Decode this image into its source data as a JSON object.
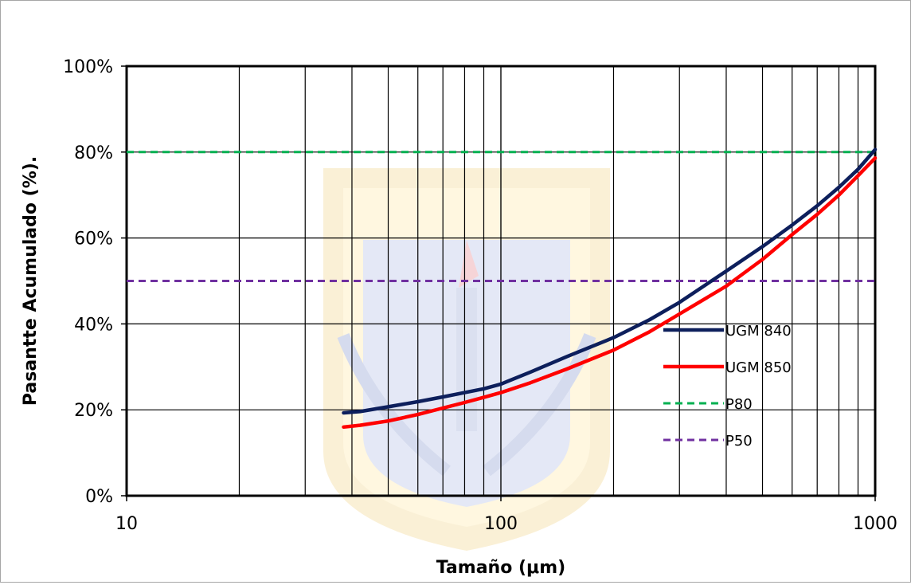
{
  "chart_data": {
    "type": "line",
    "xlabel": "Tamaño (μm)",
    "ylabel": "Pasantte Acumulado (%).",
    "x_scale": "log",
    "xlim": [
      10,
      1000
    ],
    "ylim": [
      0,
      100
    ],
    "x_ticks": [
      "10",
      "100",
      "1000"
    ],
    "y_ticks": [
      "0%",
      "20%",
      "40%",
      "60%",
      "80%",
      "100%"
    ],
    "grid": true,
    "legend_position": "right",
    "series": [
      {
        "name": "UGM 840",
        "color": "#0d1f5c",
        "style": "solid",
        "x": [
          38,
          42,
          50,
          60,
          70,
          80,
          90,
          100,
          120,
          150,
          200,
          250,
          300,
          400,
          500,
          600,
          700,
          800,
          900,
          1000
        ],
        "y": [
          19.3,
          19.6,
          20.7,
          21.9,
          23.0,
          24.0,
          24.9,
          26.0,
          28.8,
          32.4,
          36.8,
          41.0,
          45.0,
          52.3,
          58.0,
          63.0,
          67.5,
          71.8,
          76.0,
          80.6
        ]
      },
      {
        "name": "UGM 850",
        "color": "#ff0000",
        "style": "solid",
        "x": [
          38,
          42,
          50,
          60,
          70,
          80,
          90,
          100,
          120,
          150,
          200,
          250,
          300,
          400,
          500,
          600,
          700,
          800,
          900,
          1000
        ],
        "y": [
          16.0,
          16.4,
          17.4,
          18.9,
          20.4,
          21.7,
          22.9,
          24.0,
          26.3,
          29.5,
          33.9,
          38.2,
          42.3,
          48.8,
          55.0,
          60.8,
          65.5,
          70.0,
          74.5,
          78.6
        ]
      },
      {
        "name": "P80",
        "color": "#00b050",
        "style": "dashed",
        "x": [
          10,
          1000
        ],
        "y": [
          80,
          80
        ]
      },
      {
        "name": "P50",
        "color": "#7030a0",
        "style": "dashed",
        "x": [
          10,
          1000
        ],
        "y": [
          50,
          50
        ]
      }
    ]
  }
}
